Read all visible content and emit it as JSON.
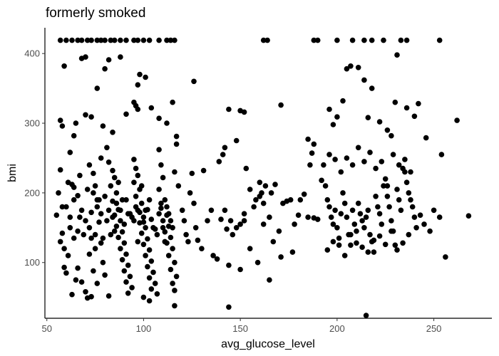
{
  "chart_data": {
    "type": "scatter",
    "title": "formerly smoked",
    "xlabel": "avg_glucose_level",
    "ylabel": "bmi",
    "xlim": [
      49,
      280
    ],
    "ylim": [
      20,
      437
    ],
    "xticks": [
      50,
      100,
      150,
      200,
      250
    ],
    "yticks": [
      100,
      200,
      300,
      400
    ],
    "grid": false,
    "legend": "none",
    "point_color": "#000000",
    "points": [
      [
        57,
        419
      ],
      [
        60,
        419
      ],
      [
        63,
        419
      ],
      [
        66,
        419
      ],
      [
        68,
        419
      ],
      [
        71,
        419
      ],
      [
        73,
        419
      ],
      [
        76,
        419
      ],
      [
        78,
        419
      ],
      [
        80,
        419
      ],
      [
        83,
        419
      ],
      [
        85,
        419
      ],
      [
        88,
        419
      ],
      [
        91,
        419
      ],
      [
        95,
        419
      ],
      [
        97,
        419
      ],
      [
        100,
        419
      ],
      [
        103,
        419
      ],
      [
        108,
        419
      ],
      [
        112,
        419
      ],
      [
        114,
        419
      ],
      [
        116,
        419
      ],
      [
        162,
        419
      ],
      [
        164,
        419
      ],
      [
        188,
        419
      ],
      [
        190,
        419
      ],
      [
        200,
        419
      ],
      [
        208,
        419
      ],
      [
        214,
        419
      ],
      [
        218,
        419
      ],
      [
        224,
        419
      ],
      [
        233,
        419
      ],
      [
        236,
        419
      ],
      [
        253,
        419
      ],
      [
        59,
        382
      ],
      [
        68,
        393
      ],
      [
        70,
        395
      ],
      [
        82,
        391
      ],
      [
        88,
        395
      ],
      [
        80,
        378
      ],
      [
        76,
        350
      ],
      [
        97,
        355
      ],
      [
        98,
        370
      ],
      [
        101,
        366
      ],
      [
        126,
        360
      ],
      [
        115,
        330
      ],
      [
        57,
        304
      ],
      [
        58,
        296
      ],
      [
        64,
        282
      ],
      [
        70,
        312
      ],
      [
        73,
        309
      ],
      [
        62,
        258
      ],
      [
        65,
        300
      ],
      [
        79,
        296
      ],
      [
        84,
        287
      ],
      [
        91,
        313
      ],
      [
        95,
        330
      ],
      [
        96,
        325
      ],
      [
        97,
        320
      ],
      [
        104,
        322
      ],
      [
        108,
        307
      ],
      [
        112,
        300
      ],
      [
        117,
        281
      ],
      [
        144,
        320
      ],
      [
        150,
        318
      ],
      [
        152,
        316
      ],
      [
        171,
        326
      ],
      [
        185,
        277
      ],
      [
        187,
        257
      ],
      [
        188,
        270
      ],
      [
        196,
        320
      ],
      [
        200,
        309
      ],
      [
        198,
        298
      ],
      [
        203,
        332
      ],
      [
        205,
        378
      ],
      [
        207,
        382
      ],
      [
        211,
        380
      ],
      [
        214,
        362
      ],
      [
        218,
        350
      ],
      [
        216,
        308
      ],
      [
        222,
        302
      ],
      [
        226,
        290
      ],
      [
        228,
        282
      ],
      [
        230,
        330
      ],
      [
        231,
        398
      ],
      [
        236,
        322
      ],
      [
        240,
        310
      ],
      [
        242,
        328
      ],
      [
        246,
        279
      ],
      [
        254,
        255
      ],
      [
        262,
        304
      ],
      [
        57,
        233
      ],
      [
        56,
        200
      ],
      [
        58,
        180
      ],
      [
        55,
        168
      ],
      [
        58,
        142
      ],
      [
        57,
        130
      ],
      [
        59,
        120
      ],
      [
        61,
        110
      ],
      [
        59,
        93
      ],
      [
        62,
        150
      ],
      [
        61,
        215
      ],
      [
        64,
        208
      ],
      [
        66,
        196
      ],
      [
        67,
        165
      ],
      [
        64,
        135
      ],
      [
        66,
        92
      ],
      [
        68,
        72
      ],
      [
        70,
        58
      ],
      [
        71,
        49
      ],
      [
        73,
        51
      ],
      [
        65,
        75
      ],
      [
        63,
        54
      ],
      [
        60,
        85
      ],
      [
        72,
        240
      ],
      [
        74,
        228
      ],
      [
        75,
        210
      ],
      [
        76,
        190
      ],
      [
        73,
        172
      ],
      [
        77,
        158
      ],
      [
        75,
        140
      ],
      [
        78,
        128
      ],
      [
        72,
        112
      ],
      [
        79,
        100
      ],
      [
        74,
        88
      ],
      [
        80,
        82
      ],
      [
        76,
        70
      ],
      [
        81,
        265
      ],
      [
        78,
        250
      ],
      [
        82,
        244
      ],
      [
        84,
        232
      ],
      [
        85,
        222
      ],
      [
        83,
        210
      ],
      [
        86,
        200
      ],
      [
        84,
        188
      ],
      [
        87,
        176
      ],
      [
        85,
        168
      ],
      [
        88,
        160
      ],
      [
        86,
        152
      ],
      [
        89,
        144
      ],
      [
        87,
        136
      ],
      [
        90,
        128
      ],
      [
        88,
        120
      ],
      [
        91,
        112
      ],
      [
        89,
        104
      ],
      [
        92,
        96
      ],
      [
        90,
        88
      ],
      [
        93,
        80
      ],
      [
        91,
        72
      ],
      [
        94,
        64
      ],
      [
        92,
        56
      ],
      [
        82,
        52
      ],
      [
        95,
        248
      ],
      [
        96,
        235
      ],
      [
        97,
        225
      ],
      [
        95,
        215
      ],
      [
        98,
        205
      ],
      [
        96,
        195
      ],
      [
        99,
        185
      ],
      [
        97,
        175
      ],
      [
        100,
        165
      ],
      [
        98,
        157
      ],
      [
        101,
        150
      ],
      [
        99,
        142
      ],
      [
        102,
        134
      ],
      [
        100,
        126
      ],
      [
        103,
        118
      ],
      [
        101,
        110
      ],
      [
        104,
        102
      ],
      [
        102,
        94
      ],
      [
        105,
        86
      ],
      [
        103,
        78
      ],
      [
        106,
        70
      ],
      [
        104,
        62
      ],
      [
        107,
        55
      ],
      [
        100,
        50
      ],
      [
        103,
        45
      ],
      [
        108,
        262
      ],
      [
        109,
        240
      ],
      [
        110,
        222
      ],
      [
        108,
        205
      ],
      [
        111,
        190
      ],
      [
        109,
        178
      ],
      [
        112,
        168
      ],
      [
        110,
        160
      ],
      [
        113,
        152
      ],
      [
        111,
        144
      ],
      [
        114,
        136
      ],
      [
        112,
        128
      ],
      [
        115,
        120
      ],
      [
        113,
        110
      ],
      [
        116,
        100
      ],
      [
        114,
        90
      ],
      [
        117,
        80
      ],
      [
        115,
        70
      ],
      [
        116,
        60
      ],
      [
        116,
        38
      ],
      [
        118,
        210
      ],
      [
        116,
        230
      ],
      [
        117,
        270
      ],
      [
        60,
        180
      ],
      [
        62,
        165
      ],
      [
        64,
        190
      ],
      [
        66,
        145
      ],
      [
        68,
        175
      ],
      [
        70,
        160
      ],
      [
        72,
        150
      ],
      [
        74,
        200
      ],
      [
        76,
        180
      ],
      [
        78,
        170
      ],
      [
        80,
        195
      ],
      [
        82,
        175
      ],
      [
        84,
        165
      ],
      [
        86,
        185
      ],
      [
        88,
        175
      ],
      [
        90,
        155
      ],
      [
        92,
        170
      ],
      [
        94,
        165
      ],
      [
        96,
        180
      ],
      [
        98,
        172
      ],
      [
        100,
        158
      ],
      [
        102,
        176
      ],
      [
        104,
        162
      ],
      [
        106,
        148
      ],
      [
        108,
        170
      ],
      [
        110,
        150
      ],
      [
        112,
        180
      ],
      [
        114,
        160
      ],
      [
        63,
        212
      ],
      [
        67,
        225
      ],
      [
        71,
        205
      ],
      [
        75,
        120
      ],
      [
        79,
        135
      ],
      [
        83,
        140
      ],
      [
        87,
        215
      ],
      [
        91,
        190
      ],
      [
        95,
        160
      ],
      [
        99,
        210
      ],
      [
        103,
        190
      ],
      [
        107,
        140
      ],
      [
        111,
        130
      ],
      [
        115,
        150
      ],
      [
        69,
        140
      ],
      [
        73,
        135
      ],
      [
        77,
        190
      ],
      [
        81,
        160
      ],
      [
        85,
        145
      ],
      [
        89,
        190
      ],
      [
        93,
        170
      ],
      [
        97,
        130
      ],
      [
        101,
        175
      ],
      [
        105,
        150
      ],
      [
        109,
        185
      ],
      [
        113,
        170
      ],
      [
        120,
        175
      ],
      [
        121,
        160
      ],
      [
        122,
        140
      ],
      [
        123,
        130
      ],
      [
        124,
        200
      ],
      [
        125,
        228
      ],
      [
        126,
        185
      ],
      [
        127,
        150
      ],
      [
        128,
        132
      ],
      [
        130,
        120
      ],
      [
        131,
        232
      ],
      [
        133,
        160
      ],
      [
        135,
        175
      ],
      [
        136,
        110
      ],
      [
        138,
        105
      ],
      [
        140,
        162
      ],
      [
        142,
        175
      ],
      [
        143,
        148
      ],
      [
        145,
        160
      ],
      [
        146,
        140
      ],
      [
        148,
        150
      ],
      [
        150,
        155
      ],
      [
        152,
        160
      ],
      [
        153,
        235
      ],
      [
        155,
        205
      ],
      [
        157,
        180
      ],
      [
        158,
        190
      ],
      [
        160,
        195
      ],
      [
        161,
        200
      ],
      [
        162,
        185
      ],
      [
        163,
        210
      ],
      [
        165,
        165
      ],
      [
        167,
        130
      ],
      [
        168,
        212
      ],
      [
        170,
        145
      ],
      [
        171,
        108
      ],
      [
        172,
        185
      ],
      [
        174,
        188
      ],
      [
        176,
        190
      ],
      [
        177,
        115
      ],
      [
        178,
        155
      ],
      [
        180,
        168
      ],
      [
        181,
        190
      ],
      [
        183,
        198
      ],
      [
        185,
        165
      ],
      [
        186,
        240
      ],
      [
        188,
        164
      ],
      [
        190,
        162
      ],
      [
        139,
        245
      ],
      [
        141,
        255
      ],
      [
        142,
        265
      ],
      [
        148,
        275
      ],
      [
        155,
        120
      ],
      [
        159,
        100
      ],
      [
        162,
        155
      ],
      [
        165,
        75
      ],
      [
        166,
        200
      ],
      [
        144,
        36
      ],
      [
        144,
        96
      ],
      [
        150,
        90
      ],
      [
        152,
        170
      ],
      [
        160,
        215
      ],
      [
        192,
        218
      ],
      [
        194,
        210
      ],
      [
        195,
        190
      ],
      [
        196,
        180
      ],
      [
        197,
        165
      ],
      [
        198,
        155
      ],
      [
        199,
        175
      ],
      [
        200,
        150
      ],
      [
        201,
        135
      ],
      [
        202,
        170
      ],
      [
        203,
        200
      ],
      [
        204,
        185
      ],
      [
        205,
        165
      ],
      [
        206,
        140
      ],
      [
        207,
        125
      ],
      [
        208,
        175
      ],
      [
        209,
        155
      ],
      [
        210,
        145
      ],
      [
        211,
        185
      ],
      [
        212,
        170
      ],
      [
        213,
        160
      ],
      [
        214,
        150
      ],
      [
        215,
        165
      ],
      [
        216,
        175
      ],
      [
        217,
        140
      ],
      [
        218,
        130
      ],
      [
        219,
        115
      ],
      [
        220,
        195
      ],
      [
        221,
        180
      ],
      [
        222,
        170
      ],
      [
        223,
        155
      ],
      [
        224,
        210
      ],
      [
        225,
        220
      ],
      [
        226,
        195
      ],
      [
        227,
        180
      ],
      [
        228,
        160
      ],
      [
        229,
        145
      ],
      [
        230,
        125
      ],
      [
        231,
        205
      ],
      [
        232,
        190
      ],
      [
        233,
        175
      ],
      [
        234,
        235
      ],
      [
        235,
        230
      ],
      [
        236,
        215
      ],
      [
        237,
        200
      ],
      [
        238,
        190
      ],
      [
        239,
        180
      ],
      [
        240,
        165
      ],
      [
        241,
        150
      ],
      [
        243,
        168
      ],
      [
        245,
        155
      ],
      [
        248,
        145
      ],
      [
        250,
        175
      ],
      [
        253,
        165
      ],
      [
        256,
        108
      ],
      [
        268,
        167
      ],
      [
        193,
        240
      ],
      [
        196,
        255
      ],
      [
        199,
        248
      ],
      [
        202,
        230
      ],
      [
        205,
        250
      ],
      [
        208,
        240
      ],
      [
        211,
        265
      ],
      [
        214,
        245
      ],
      [
        217,
        258
      ],
      [
        220,
        235
      ],
      [
        223,
        245
      ],
      [
        226,
        210
      ],
      [
        229,
        255
      ],
      [
        232,
        240
      ],
      [
        235,
        248
      ],
      [
        238,
        230
      ],
      [
        195,
        118
      ],
      [
        198,
        130
      ],
      [
        201,
        125
      ],
      [
        204,
        110
      ],
      [
        207,
        140
      ],
      [
        210,
        128
      ],
      [
        213,
        122
      ],
      [
        216,
        115
      ],
      [
        219,
        132
      ],
      [
        222,
        138
      ],
      [
        225,
        126
      ],
      [
        228,
        145
      ],
      [
        231,
        118
      ],
      [
        234,
        128
      ],
      [
        215,
        24
      ],
      [
        237,
        140
      ]
    ]
  }
}
